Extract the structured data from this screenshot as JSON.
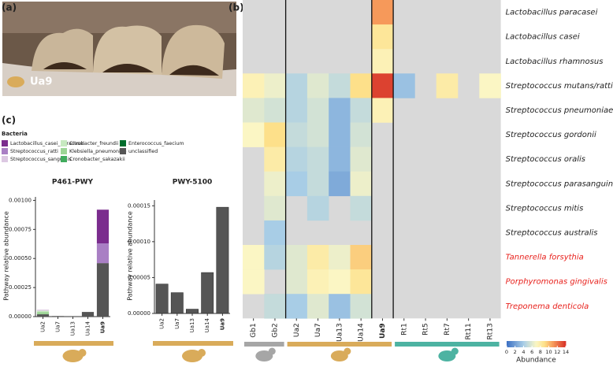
{
  "panels": {
    "a": "(a)",
    "b": "(b)",
    "c": "(c)"
  },
  "photo": {
    "label": "Ua9"
  },
  "legend_title": "Bacteria",
  "y_axis_label": "Pathway relative abundance",
  "chart_data": [
    {
      "type": "bar",
      "stacked": true,
      "title": "P461-PWY",
      "categories": [
        "Ua2",
        "Ua7",
        "Ua13",
        "Ua14",
        "Ua9"
      ],
      "bold_index": 4,
      "series": [
        {
          "name": "Lactobacillus_casei_paracasei",
          "color": "#7b2d8e",
          "values": [
            0,
            0,
            0,
            0,
            0.00029
          ]
        },
        {
          "name": "Streptococcus_ratti",
          "color": "#a97fc4",
          "values": [
            0,
            0,
            0,
            0,
            0.00017
          ]
        },
        {
          "name": "Streptococcus_sanguinis",
          "color": "#dcc8e2",
          "values": [
            1e-05,
            0,
            0,
            0,
            0
          ]
        },
        {
          "name": "Citrobacter_freundii",
          "color": "#c7e9c0",
          "values": [
            1e-05,
            0,
            0,
            0,
            0
          ]
        },
        {
          "name": "Klebsiella_pneumoniae",
          "color": "#9dd596",
          "values": [
            2e-05,
            0,
            0,
            0,
            0
          ]
        },
        {
          "name": "Cronobacter_sakazakii",
          "color": "#41ab5d",
          "values": [
            0,
            0,
            0,
            0,
            0
          ]
        },
        {
          "name": "Enterococcus_faecium",
          "color": "#006d2c",
          "values": [
            0,
            0,
            0,
            0,
            0
          ]
        },
        {
          "name": "unclassified",
          "color": "#555555",
          "values": [
            2e-05,
            5e-06,
            0,
            4e-05,
            0.00046
          ]
        }
      ],
      "ylim": [
        0,
        0.00103
      ],
      "yticks": [
        {
          "value": 0,
          "label": "0.00000"
        },
        {
          "value": 0.00025,
          "label": "0.00025"
        },
        {
          "value": 0.0005,
          "label": "0.00050"
        },
        {
          "value": 0.00075,
          "label": "0.00075"
        },
        {
          "value": 0.001,
          "label": "0.00100"
        }
      ]
    },
    {
      "type": "bar",
      "title": "PWY-5100",
      "categories": [
        "Ua2",
        "Ua7",
        "Ua13",
        "Ua14",
        "Ua9"
      ],
      "bold_index": 4,
      "values": [
        4.1e-05,
        2.9e-05,
        6e-06,
        5.7e-05,
        0.000148
      ],
      "color": "#555555",
      "ylim": [
        0,
        0.000158
      ],
      "yticks": [
        {
          "value": 0,
          "label": "0.00000"
        },
        {
          "value": 5e-05,
          "label": "0.00005"
        },
        {
          "value": 0.0001,
          "label": "0.00010"
        },
        {
          "value": 0.00015,
          "label": "0.00015"
        }
      ]
    },
    {
      "type": "heatmap",
      "columns": [
        "Gb1",
        "Gb2",
        "Ua2",
        "Ua7",
        "Ua13",
        "Ua14",
        "Ua9",
        "Rt1",
        "Rt5",
        "Rt7",
        "Rt11",
        "Rt13"
      ],
      "bold_index": 6,
      "rows": [
        "Lactobacillus paracasei",
        "Lactobacillus casei",
        "Lactobacillus rhamnosus",
        "Streptococcus mutans/ratti",
        "Streptococcus pneumoniae",
        "Streptococcus gordonii",
        "Streptococcus oralis",
        "Streptococcus parasanguinis",
        "Streptococcus mitis",
        "Streptococcus australis",
        "Tannerella forsythia",
        "Porphyromonas gingivalis",
        "Treponema denticola"
      ],
      "row_label_colors": [
        "#222",
        "#222",
        "#222",
        "#222",
        "#222",
        "#222",
        "#222",
        "#222",
        "#222",
        "#222",
        "#e8211c",
        "#e8211c",
        "#e8211c"
      ],
      "values": [
        [
          null,
          null,
          null,
          null,
          null,
          null,
          11,
          null,
          null,
          null,
          null,
          null
        ],
        [
          null,
          null,
          null,
          null,
          null,
          null,
          8.5,
          null,
          null,
          null,
          null,
          null
        ],
        [
          null,
          null,
          null,
          null,
          null,
          null,
          7.5,
          null,
          null,
          null,
          null,
          null
        ],
        [
          7.5,
          6.5,
          4.5,
          6,
          5,
          9,
          13.5,
          3.5,
          null,
          8,
          null,
          7
        ],
        [
          6,
          5.5,
          4.5,
          5.5,
          3,
          5,
          7.5,
          null,
          null,
          null,
          null,
          null
        ],
        [
          7,
          9,
          5,
          5.5,
          3,
          5.5,
          null,
          null,
          null,
          null,
          null,
          null
        ],
        [
          null,
          8,
          4.5,
          5,
          3,
          6,
          null,
          null,
          null,
          null,
          null,
          null
        ],
        [
          null,
          6.5,
          4,
          5,
          2.5,
          6.5,
          null,
          null,
          null,
          null,
          null,
          null
        ],
        [
          null,
          6,
          null,
          4.5,
          null,
          5,
          null,
          null,
          null,
          null,
          null,
          null
        ],
        [
          null,
          4,
          null,
          null,
          null,
          null,
          null,
          null,
          null,
          null,
          null,
          null
        ],
        [
          7,
          4.5,
          6,
          8,
          6.5,
          9.5,
          null,
          null,
          null,
          null,
          null,
          null
        ],
        [
          7,
          null,
          6,
          7.5,
          7,
          8.5,
          null,
          null,
          null,
          null,
          null,
          null
        ],
        [
          null,
          5,
          4,
          6,
          3.5,
          5.5,
          null,
          null,
          null,
          null,
          null,
          null
        ]
      ],
      "separators_after": [
        1,
        5,
        6
      ],
      "groups": [
        {
          "first": 0,
          "last": 1,
          "color": "#a6a6a6"
        },
        {
          "first": 2,
          "last": 6,
          "color": "#d9ab5a"
        },
        {
          "first": 7,
          "last": 11,
          "color": "#4db3a2"
        }
      ],
      "colorbar_title": "Abundance",
      "clim": [
        0,
        14
      ],
      "cticks": [
        0,
        2,
        4,
        6,
        8,
        10,
        12,
        14
      ]
    }
  ]
}
